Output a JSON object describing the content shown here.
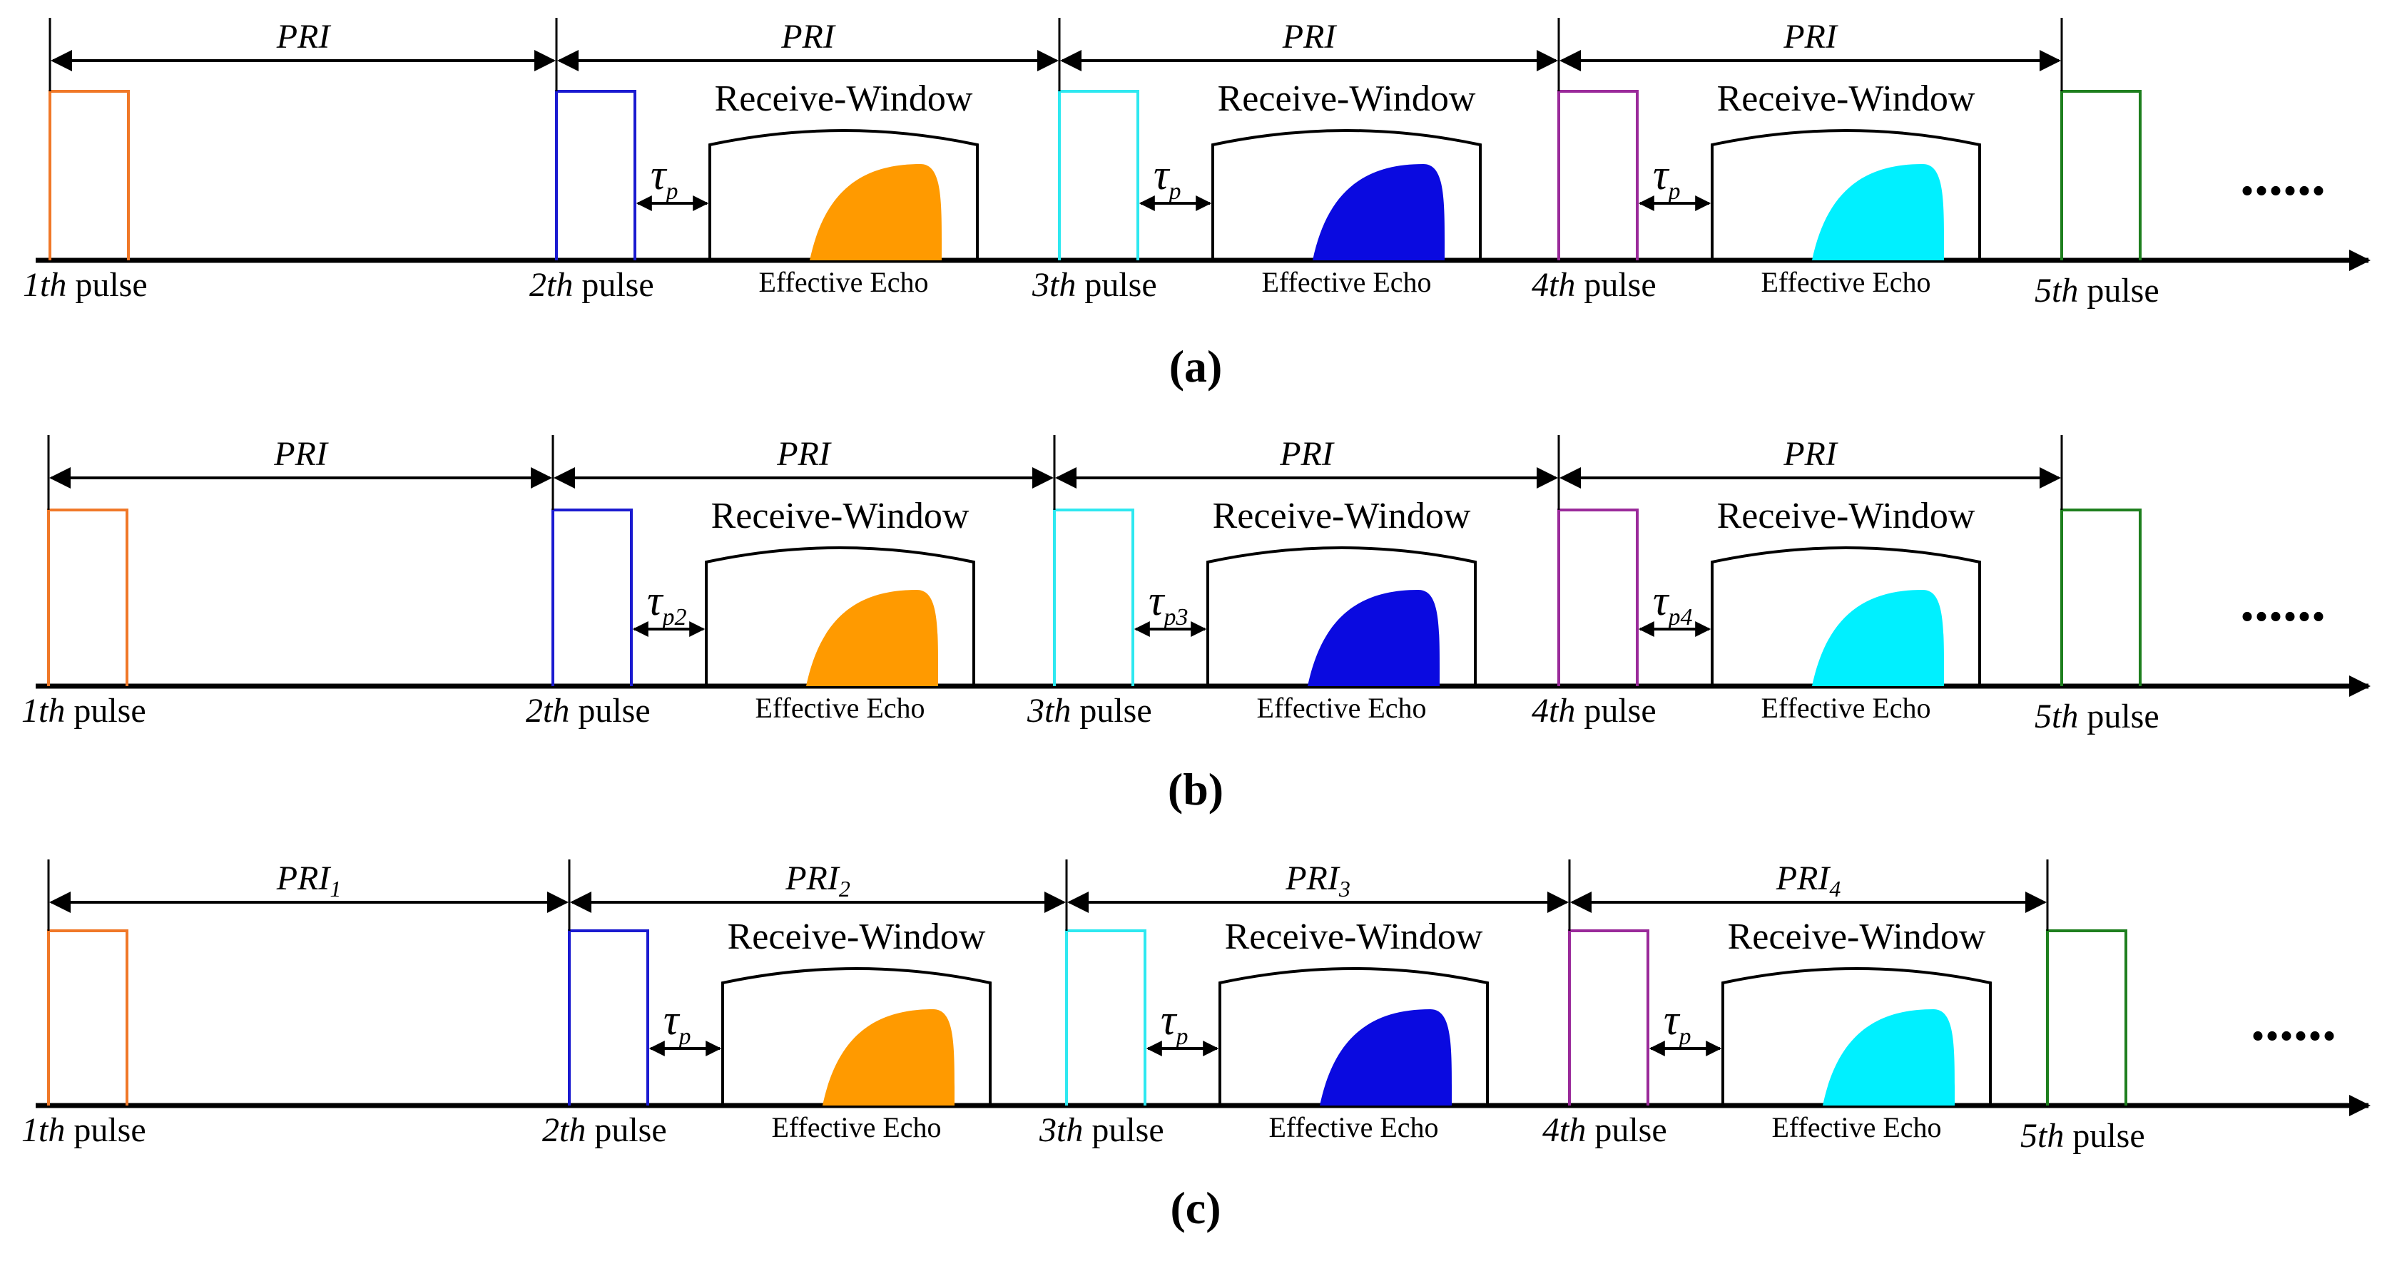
{
  "colors": {
    "pulses": [
      "#f07828",
      "#1a1ad0",
      "#2ee8f0",
      "#9a2a9a",
      "#1e7f1e"
    ],
    "echoes": [
      "#ff9a00",
      "#0a0ae0",
      "#00f0ff"
    ]
  },
  "panels": [
    {
      "id": "a",
      "caption": "a",
      "pri_labels": [
        {
          "base": "PRI",
          "sub": ""
        },
        {
          "base": "PRI",
          "sub": ""
        },
        {
          "base": "PRI",
          "sub": ""
        },
        {
          "base": "PRI",
          "sub": ""
        }
      ],
      "pulse_labels": [
        {
          "ord": "1th",
          "word": "pulse"
        },
        {
          "ord": "2th",
          "word": "pulse"
        },
        {
          "ord": "3th",
          "word": "pulse"
        },
        {
          "ord": "4th",
          "word": "pulse"
        },
        {
          "ord": "5th",
          "word": "pulse"
        }
      ],
      "windows": [
        {
          "label": "Receive-Window",
          "echo": "Effective Echo",
          "tau": "τ",
          "tau_sub": "p"
        },
        {
          "label": "Receive-Window",
          "echo": "Effective Echo",
          "tau": "τ",
          "tau_sub": "p"
        },
        {
          "label": "Receive-Window",
          "echo": "Effective Echo",
          "tau": "τ",
          "tau_sub": "p"
        }
      ],
      "ellipsis": "......"
    },
    {
      "id": "b",
      "caption": "b",
      "pri_labels": [
        {
          "base": "PRI",
          "sub": ""
        },
        {
          "base": "PRI",
          "sub": ""
        },
        {
          "base": "PRI",
          "sub": ""
        },
        {
          "base": "PRI",
          "sub": ""
        }
      ],
      "pulse_labels": [
        {
          "ord": "1th",
          "word": "pulse"
        },
        {
          "ord": "2th",
          "word": "pulse"
        },
        {
          "ord": "3th",
          "word": "pulse"
        },
        {
          "ord": "4th",
          "word": "pulse"
        },
        {
          "ord": "5th",
          "word": "pulse"
        }
      ],
      "windows": [
        {
          "label": "Receive-Window",
          "echo": "Effective Echo",
          "tau": "τ",
          "tau_sub": "p2"
        },
        {
          "label": "Receive-Window",
          "echo": "Effective Echo",
          "tau": "τ",
          "tau_sub": "p3"
        },
        {
          "label": "Receive-Window",
          "echo": "Effective Echo",
          "tau": "τ",
          "tau_sub": "p4"
        }
      ],
      "ellipsis": "......"
    },
    {
      "id": "c",
      "caption": "c",
      "pri_labels": [
        {
          "base": "PRI",
          "sub": "1"
        },
        {
          "base": "PRI",
          "sub": "2"
        },
        {
          "base": "PRI",
          "sub": "3"
        },
        {
          "base": "PRI",
          "sub": "4"
        }
      ],
      "pulse_labels": [
        {
          "ord": "1th",
          "word": "pulse"
        },
        {
          "ord": "2th",
          "word": "pulse"
        },
        {
          "ord": "3th",
          "word": "pulse"
        },
        {
          "ord": "4th",
          "word": "pulse"
        },
        {
          "ord": "5th",
          "word": "pulse"
        }
      ],
      "windows": [
        {
          "label": "Receive-Window",
          "echo": "Effective Echo",
          "tau": "τ",
          "tau_sub": "p"
        },
        {
          "label": "Receive-Window",
          "echo": "Effective Echo",
          "tau": "τ",
          "tau_sub": "p"
        },
        {
          "label": "Receive-Window",
          "echo": "Effective Echo",
          "tau": "τ",
          "tau_sub": "p"
        }
      ],
      "ellipsis": "......"
    }
  ]
}
